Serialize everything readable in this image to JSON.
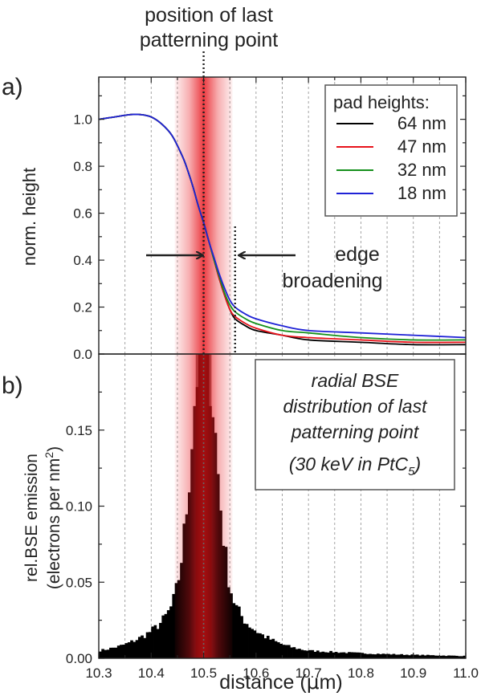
{
  "annotations": {
    "top_label_line1": "position of last",
    "top_label_line2": "patterning point",
    "edge_line1": "edge",
    "edge_line2": "broadening"
  },
  "chart_data": [
    {
      "type": "line",
      "panel_label": "a)",
      "ylabel": "norm. height",
      "xlabel": "",
      "xlim": [
        10.3,
        11.0
      ],
      "ylim": [
        0.0,
        1.18
      ],
      "yticks": [
        0.0,
        0.2,
        0.4,
        0.6,
        0.8,
        1.0
      ],
      "xgrid": true,
      "legend_title": "pad heights:",
      "legend_position": "top-right",
      "x": [
        10.3,
        10.33,
        10.36,
        10.38,
        10.4,
        10.42,
        10.44,
        10.46,
        10.47,
        10.48,
        10.49,
        10.5,
        10.51,
        10.52,
        10.53,
        10.54,
        10.55,
        10.56,
        10.58,
        10.6,
        10.65,
        10.7,
        10.8,
        10.9,
        11.0
      ],
      "series": [
        {
          "name": "64 nm",
          "color": "#000000",
          "values": [
            1.0,
            1.01,
            1.02,
            1.02,
            1.01,
            0.98,
            0.93,
            0.84,
            0.78,
            0.71,
            0.63,
            0.56,
            0.48,
            0.4,
            0.32,
            0.25,
            0.19,
            0.15,
            0.12,
            0.1,
            0.08,
            0.06,
            0.05,
            0.04,
            0.04
          ]
        },
        {
          "name": "47 nm",
          "color": "#e8131b",
          "values": [
            1.0,
            1.01,
            1.02,
            1.02,
            1.01,
            0.98,
            0.93,
            0.84,
            0.78,
            0.71,
            0.63,
            0.56,
            0.48,
            0.4,
            0.32,
            0.25,
            0.19,
            0.16,
            0.13,
            0.11,
            0.08,
            0.07,
            0.06,
            0.05,
            0.05
          ]
        },
        {
          "name": "32 nm",
          "color": "#15901c",
          "values": [
            1.0,
            1.01,
            1.02,
            1.02,
            1.01,
            0.98,
            0.93,
            0.84,
            0.78,
            0.71,
            0.63,
            0.56,
            0.48,
            0.4,
            0.33,
            0.26,
            0.21,
            0.18,
            0.15,
            0.13,
            0.1,
            0.09,
            0.07,
            0.06,
            0.06
          ]
        },
        {
          "name": "18 nm",
          "color": "#1f22d6",
          "values": [
            1.0,
            1.01,
            1.02,
            1.02,
            1.01,
            0.98,
            0.93,
            0.84,
            0.78,
            0.71,
            0.63,
            0.56,
            0.48,
            0.41,
            0.34,
            0.28,
            0.23,
            0.2,
            0.17,
            0.15,
            0.12,
            0.1,
            0.09,
            0.08,
            0.07
          ]
        }
      ],
      "vlines": [
        10.5,
        10.56
      ]
    },
    {
      "type": "bar",
      "panel_label": "b)",
      "ylabel": "rel.BSE emission",
      "ylabel_line2": "(electrons per nm",
      "ylabel_sup": "2",
      "ylabel_close": ")",
      "xlabel_prefix": "distance (",
      "xlabel_mu": "μ",
      "xlabel_suffix": "m)",
      "xlim": [
        10.3,
        11.0
      ],
      "ylim": [
        0.0,
        0.2
      ],
      "xticks": [
        10.3,
        10.4,
        10.5,
        10.6,
        10.7,
        10.8,
        10.9,
        11.0
      ],
      "yticks": [
        0.0,
        0.05,
        0.1,
        0.15
      ],
      "xgrid": true,
      "center": 10.5,
      "bin_width": 0.005,
      "profile_offsets": [
        0.0,
        0.01,
        0.02,
        0.03,
        0.04,
        0.05,
        0.06,
        0.08,
        0.1,
        0.13,
        0.16,
        0.2
      ],
      "profile_values": [
        0.2,
        0.2,
        0.16,
        0.11,
        0.073,
        0.048,
        0.035,
        0.024,
        0.018,
        0.012,
        0.008,
        0.005
      ],
      "textbox": {
        "line1": "radial BSE",
        "line2": "distribution of last",
        "line3": "patterning point",
        "line4_prefix": "(30 keV in PtC",
        "line4_sub": "5",
        "line4_suffix": ")"
      },
      "highlight_band": {
        "center": 10.5,
        "half_width": 0.055,
        "color": "#e81920"
      }
    }
  ]
}
